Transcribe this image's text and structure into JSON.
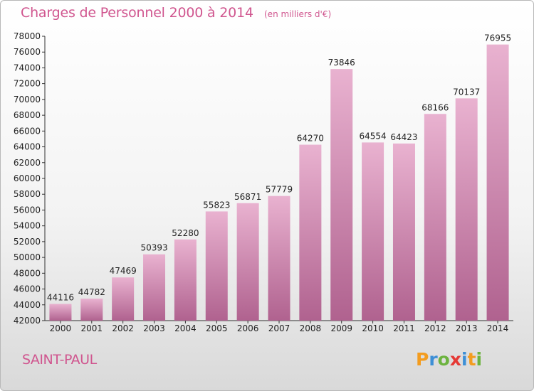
{
  "title": "Charges de Personnel 2000 à 2014",
  "subtitle": "(en milliers d'€)",
  "commune": "SAINT-PAUL",
  "logo": {
    "letters": [
      "P",
      "r",
      "o",
      "x",
      "i",
      "t",
      "i"
    ],
    "colors": [
      "#f39c1f",
      "#3d8fd6",
      "#6cb33f",
      "#e53935",
      "#3d8fd6",
      "#f39c1f",
      "#6cb33f"
    ]
  },
  "colors": {
    "bar_light": "#e9b2d0",
    "bar_dark": "#b0628f",
    "text": "#222222",
    "accent": "#d0568f"
  },
  "chart_data": {
    "type": "bar",
    "categories": [
      "2000",
      "2001",
      "2002",
      "2003",
      "2004",
      "2005",
      "2006",
      "2007",
      "2008",
      "2009",
      "2010",
      "2011",
      "2012",
      "2013",
      "2014"
    ],
    "values": [
      44116,
      44782,
      47469,
      50393,
      52280,
      55823,
      56871,
      57779,
      64270,
      73846,
      64554,
      64423,
      68166,
      70137,
      76955
    ],
    "title": "Charges de Personnel 2000 à 2014",
    "xlabel": "",
    "ylabel": "",
    "ylim": [
      42000,
      78000
    ],
    "yticks": [
      42000,
      44000,
      46000,
      48000,
      50000,
      52000,
      54000,
      56000,
      58000,
      60000,
      62000,
      64000,
      66000,
      68000,
      70000,
      72000,
      74000,
      76000,
      78000
    ],
    "grid": false,
    "data_labels": true
  }
}
